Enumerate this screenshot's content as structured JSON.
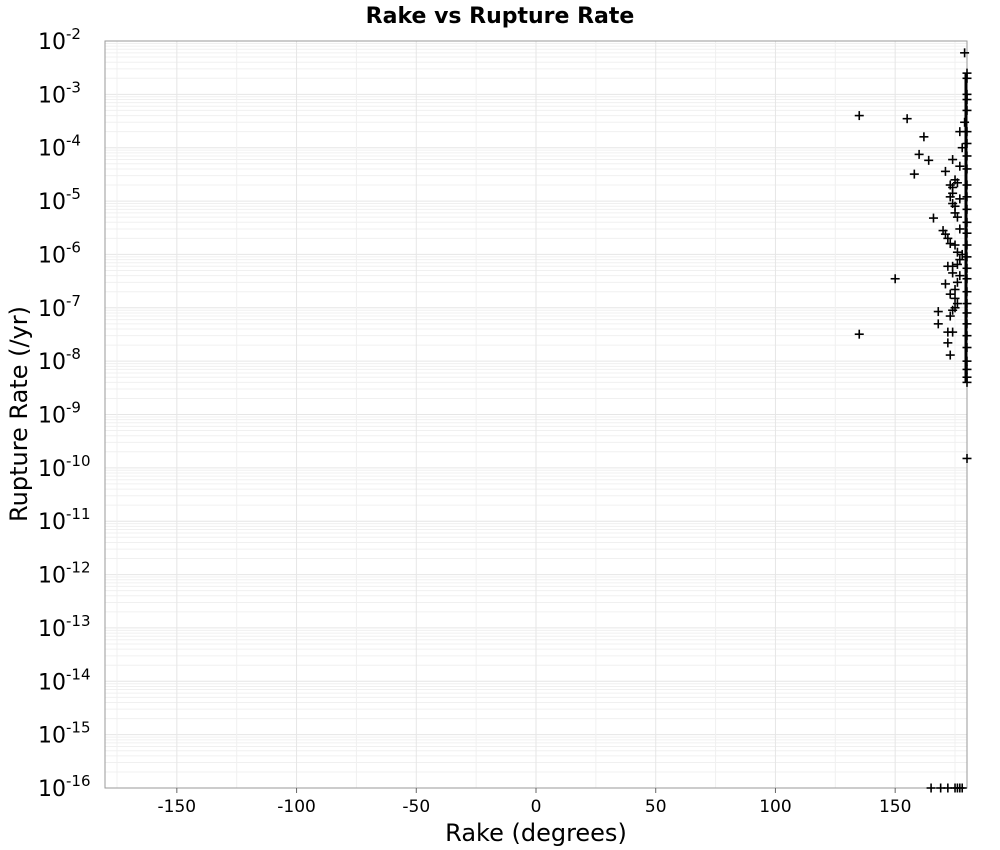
{
  "chart_data": {
    "type": "scatter",
    "title": "Rake vs Rupture Rate",
    "xlabel": "Rake (degrees)",
    "ylabel": "Rupture Rate (/yr)",
    "xlim": [
      -180,
      180
    ],
    "ylim": [
      1e-16,
      0.01
    ],
    "yscale": "log",
    "grid": true,
    "marker": "+",
    "x_ticks": [
      "-150",
      "-100",
      "-50",
      "0",
      "50",
      "100",
      "150"
    ],
    "y_ticks": [
      {
        "base": "10",
        "exp": "-16"
      },
      {
        "base": "10",
        "exp": "-15"
      },
      {
        "base": "10",
        "exp": "-14"
      },
      {
        "base": "10",
        "exp": "-13"
      },
      {
        "base": "10",
        "exp": "-12"
      },
      {
        "base": "10",
        "exp": "-11"
      },
      {
        "base": "10",
        "exp": "-10"
      },
      {
        "base": "10",
        "exp": "-9"
      },
      {
        "base": "10",
        "exp": "-8"
      },
      {
        "base": "10",
        "exp": "-7"
      },
      {
        "base": "10",
        "exp": "-6"
      },
      {
        "base": "10",
        "exp": "-5"
      },
      {
        "base": "10",
        "exp": "-4"
      },
      {
        "base": "10",
        "exp": "-3"
      },
      {
        "base": "10",
        "exp": "-2"
      }
    ],
    "points": [
      [
        135,
        0.0004
      ],
      [
        155,
        0.00035
      ],
      [
        162,
        0.00016
      ],
      [
        160,
        7.5e-05
      ],
      [
        164,
        5.8e-05
      ],
      [
        158,
        3.2e-05
      ],
      [
        171,
        3.6e-05
      ],
      [
        174,
        6e-05
      ],
      [
        177,
        4.5e-05
      ],
      [
        179,
        0.006
      ],
      [
        166,
        4.8e-06
      ],
      [
        170,
        2.8e-06
      ],
      [
        171,
        2.4e-06
      ],
      [
        172,
        2e-06
      ],
      [
        177,
        3e-06
      ],
      [
        150,
        3.5e-07
      ],
      [
        135,
        3.2e-08
      ],
      [
        168,
        8.5e-08
      ],
      [
        168,
        5e-08
      ],
      [
        172,
        2.2e-08
      ],
      [
        173,
        1.3e-08
      ],
      [
        171,
        2.8e-07
      ],
      [
        172,
        6e-07
      ],
      [
        174,
        6e-07
      ],
      [
        176,
        6.5e-07
      ],
      [
        173,
        1.8e-07
      ],
      [
        175,
        1.5e-07
      ],
      [
        173,
        7e-08
      ],
      [
        174,
        9e-08
      ],
      [
        172,
        3.5e-08
      ],
      [
        174,
        3.5e-08
      ],
      [
        176,
        1.2e-07
      ],
      [
        175,
        2.2e-07
      ],
      [
        177,
        8e-07
      ],
      [
        176,
        1.1e-06
      ],
      [
        175,
        1.5e-06
      ],
      [
        178,
        1e-06
      ],
      [
        173,
        1.2e-05
      ],
      [
        174,
        9e-06
      ],
      [
        175,
        8e-06
      ],
      [
        173,
        2e-05
      ],
      [
        174,
        1.8e-05
      ],
      [
        175,
        2.5e-05
      ],
      [
        176,
        2.2e-05
      ],
      [
        174,
        1.4e-05
      ],
      [
        175,
        6e-06
      ],
      [
        177,
        1.1e-05
      ],
      [
        176,
        5e-06
      ],
      [
        173,
        1.6e-06
      ],
      [
        174,
        4.5e-07
      ],
      [
        176,
        3e-07
      ],
      [
        175,
        1e-07
      ],
      [
        177,
        4e-07
      ],
      [
        177,
        0.0002
      ],
      [
        178,
        0.0001
      ],
      [
        179,
        0.0003
      ],
      [
        180,
        0.001
      ],
      [
        180,
        0.002
      ],
      [
        180,
        0.0025
      ],
      [
        180,
        0.0008
      ],
      [
        180,
        0.0005
      ],
      [
        180,
        0.0002
      ],
      [
        180,
        0.00012
      ],
      [
        180,
        7e-05
      ],
      [
        180,
        4e-05
      ],
      [
        180,
        2e-05
      ],
      [
        180,
        1.2e-05
      ],
      [
        180,
        7e-06
      ],
      [
        180,
        4e-06
      ],
      [
        180,
        2.5e-06
      ],
      [
        180,
        1.5e-06
      ],
      [
        180,
        9e-07
      ],
      [
        180,
        5.5e-07
      ],
      [
        180,
        3.5e-07
      ],
      [
        180,
        2e-07
      ],
      [
        180,
        1.2e-07
      ],
      [
        180,
        8e-08
      ],
      [
        180,
        5e-08
      ],
      [
        180,
        3e-08
      ],
      [
        180,
        1.8e-08
      ],
      [
        180,
        1e-08
      ],
      [
        180,
        7e-09
      ],
      [
        180,
        5e-09
      ],
      [
        180,
        4e-09
      ],
      [
        180,
        1.5e-10
      ],
      [
        165,
        1e-16
      ],
      [
        169,
        1e-16
      ],
      [
        172,
        1e-16
      ],
      [
        175,
        1e-16
      ],
      [
        176,
        1e-16
      ],
      [
        177,
        1e-16
      ],
      [
        178,
        1e-16
      ]
    ]
  }
}
